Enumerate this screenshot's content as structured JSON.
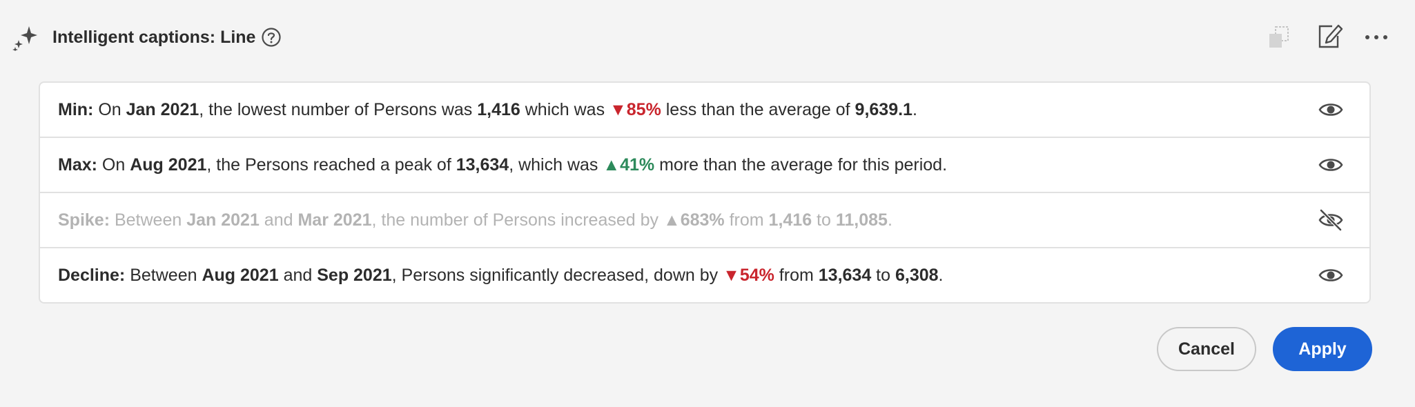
{
  "header": {
    "title": "Intelligent captions: Line",
    "icons": {
      "sparkle": "sparkle-icon",
      "help": "help-icon",
      "copy": "copy-icon",
      "edit": "edit-icon",
      "more": "more-icon"
    }
  },
  "captions": [
    {
      "label": "Min:",
      "t1": " On ",
      "b1": "Jan 2021",
      "t2": ", the lowest number of Persons was ",
      "b2": "1,416",
      "t3": " which was ",
      "delta": "▼85%",
      "t4": " less than the average of ",
      "b3": "9,639.1",
      "t5": ".",
      "visible": true
    },
    {
      "label": "Max:",
      "t1": " On ",
      "b1": "Aug 2021",
      "t2": ", the Persons reached a peak of ",
      "b2": "13,634",
      "t3": ", which was ",
      "delta": "▲41%",
      "t4": " more than the average for this period.",
      "visible": true
    },
    {
      "label": "Spike:",
      "t1": " Between ",
      "b1": "Jan 2021",
      "t2": " and ",
      "b2": "Mar 2021",
      "t3": ", the number of Persons increased by ",
      "delta": "▲683%",
      "t4": " from ",
      "b3": "1,416",
      "t5": " to ",
      "b4": "11,085",
      "t6": ".",
      "visible": false
    },
    {
      "label": "Decline:",
      "t1": " Between ",
      "b1": "Aug 2021",
      "t2": " and ",
      "b2": "Sep 2021",
      "t3": ", Persons significantly decreased, down by ",
      "delta": "▼54%",
      "t4": " from ",
      "b3": "13,634",
      "t5": " to ",
      "b4": "6,308",
      "t6": ".",
      "visible": true
    }
  ],
  "footer": {
    "cancel_label": "Cancel",
    "apply_label": "Apply"
  },
  "colors": {
    "accent": "#1e64d6",
    "down": "#c9252d",
    "up": "#2d8a5b"
  }
}
